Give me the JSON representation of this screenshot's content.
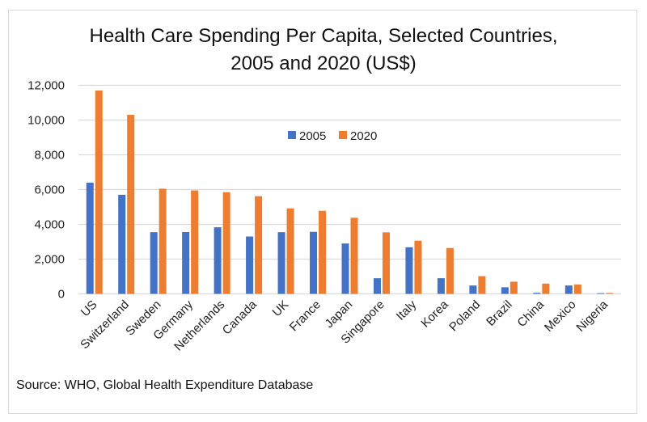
{
  "chart_data": {
    "type": "bar",
    "title": "Health Care Spending Per Capita, Selected Countries, 2005 and 2020 (US$)",
    "title_lines": [
      "Health Care Spending Per Capita, Selected Countries,",
      "2005 and 2020 (US$)"
    ],
    "xlabel": "",
    "ylabel": "",
    "ylim": [
      0,
      12000
    ],
    "yticks": [
      0,
      2000,
      4000,
      6000,
      8000,
      10000,
      12000
    ],
    "ytick_labels": [
      "0",
      "2,000",
      "4,000",
      "6,000",
      "8,000",
      "10,000",
      "12,000"
    ],
    "grid": true,
    "legend_position": "top-center",
    "categories": [
      "US",
      "Switzerland",
      "Sweden",
      "Germany",
      "Netherlands",
      "Canada",
      "UK",
      "France",
      "Japan",
      "Singapore",
      "Italy",
      "Korea",
      "Poland",
      "Brazil",
      "China",
      "Mexico",
      "Nigeria"
    ],
    "series": [
      {
        "name": "2005",
        "color": "#4472c4",
        "values": [
          6400,
          5700,
          3550,
          3560,
          3830,
          3300,
          3550,
          3570,
          2900,
          900,
          2680,
          900,
          480,
          380,
          60,
          480,
          40
        ]
      },
      {
        "name": "2020",
        "color": "#ed7d31",
        "values": [
          11700,
          10300,
          6050,
          5950,
          5850,
          5620,
          4920,
          4780,
          4380,
          3540,
          3060,
          2640,
          1020,
          700,
          590,
          540,
          50
        ]
      }
    ]
  },
  "source": "Source: WHO, Global Health Expenditure Database"
}
